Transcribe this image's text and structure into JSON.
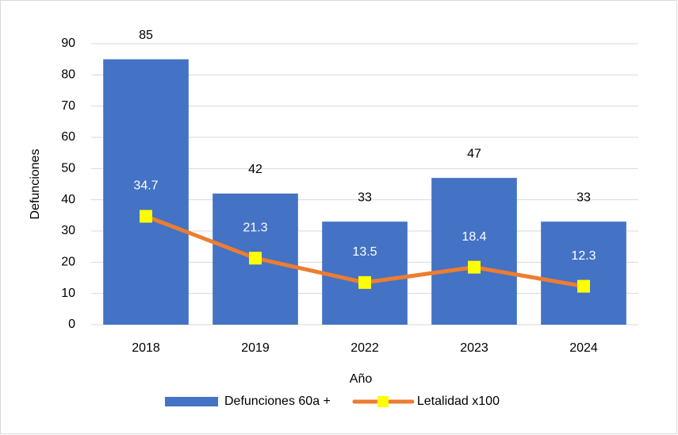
{
  "chart_data": {
    "type": "bar",
    "categories": [
      "2018",
      "2019",
      "2022",
      "2023",
      "2024"
    ],
    "series": [
      {
        "name": "Defunciones 60a +",
        "type": "bar",
        "color": "#4472c4",
        "values": [
          85,
          42,
          33,
          47,
          33
        ]
      },
      {
        "name": "Letalidad x100",
        "type": "line",
        "color": "#ed7d31",
        "marker_color": "#ffff00",
        "values": [
          34.7,
          21.3,
          13.5,
          18.4,
          12.3
        ]
      }
    ],
    "ylim": [
      0,
      90
    ],
    "yticks": [
      0,
      10,
      20,
      30,
      40,
      50,
      60,
      70,
      80,
      90
    ],
    "ylabel": "Defunciones",
    "xlabel": "Año",
    "grid": true,
    "legend": "bottom"
  }
}
